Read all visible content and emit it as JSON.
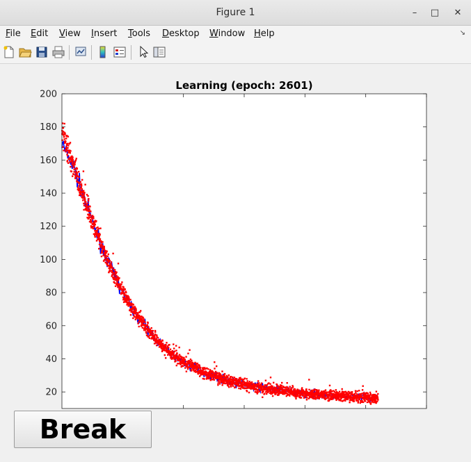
{
  "window": {
    "title": "Figure 1"
  },
  "menu": [
    {
      "label": "File",
      "u": "F",
      "rest": "ile"
    },
    {
      "label": "Edit",
      "u": "E",
      "rest": "dit"
    },
    {
      "label": "View",
      "u": "V",
      "rest": "iew"
    },
    {
      "label": "Insert",
      "u": "I",
      "rest": "nsert"
    },
    {
      "label": "Tools",
      "u": "T",
      "rest": "ools"
    },
    {
      "label": "Desktop",
      "u": "D",
      "rest": "esktop"
    },
    {
      "label": "Window",
      "u": "W",
      "rest": "indow"
    },
    {
      "label": "Help",
      "u": "H",
      "rest": "elp"
    }
  ],
  "toolbar_icons": [
    "new-figure-icon",
    "open-file-icon",
    "save-icon",
    "print-icon",
    "link-plot-icon",
    "insert-colorbar-icon",
    "insert-legend-icon",
    "pointer-icon",
    "property-editor-icon"
  ],
  "break_button": {
    "label": "Break"
  },
  "chart_data": {
    "type": "scatter",
    "title": "Learning (epoch: 2601)",
    "xlim": [
      0,
      3000
    ],
    "ylim": [
      10,
      200
    ],
    "xticks": [
      1000,
      1500,
      2000,
      2500,
      3000
    ],
    "yticks": [
      20,
      40,
      60,
      80,
      100,
      120,
      140,
      160,
      180,
      200
    ],
    "grid": false,
    "series": [
      {
        "color": "#0000ff",
        "style": "line",
        "description_points": [
          [
            0,
            170
          ],
          [
            100,
            155
          ],
          [
            200,
            133
          ],
          [
            300,
            113
          ],
          [
            400,
            95
          ],
          [
            500,
            80
          ],
          [
            600,
            68
          ],
          [
            700,
            58
          ],
          [
            800,
            50
          ],
          [
            900,
            43
          ],
          [
            1000,
            38
          ],
          [
            1200,
            31
          ],
          [
            1400,
            26
          ],
          [
            1600,
            23
          ],
          [
            1800,
            21
          ],
          [
            2000,
            19
          ],
          [
            2200,
            18
          ],
          [
            2400,
            17
          ],
          [
            2601,
            16
          ]
        ]
      },
      {
        "color": "#ff0000",
        "style": "markers",
        "description_points": [
          [
            0,
            178
          ],
          [
            100,
            155
          ],
          [
            200,
            133
          ],
          [
            300,
            113
          ],
          [
            400,
            95
          ],
          [
            500,
            80
          ],
          [
            600,
            68
          ],
          [
            700,
            58
          ],
          [
            800,
            50
          ],
          [
            900,
            43
          ],
          [
            1000,
            38
          ],
          [
            1200,
            31
          ],
          [
            1400,
            26
          ],
          [
            1600,
            23
          ],
          [
            1800,
            21
          ],
          [
            2000,
            19
          ],
          [
            2200,
            18
          ],
          [
            2400,
            17
          ],
          [
            2601,
            16
          ]
        ]
      }
    ]
  }
}
